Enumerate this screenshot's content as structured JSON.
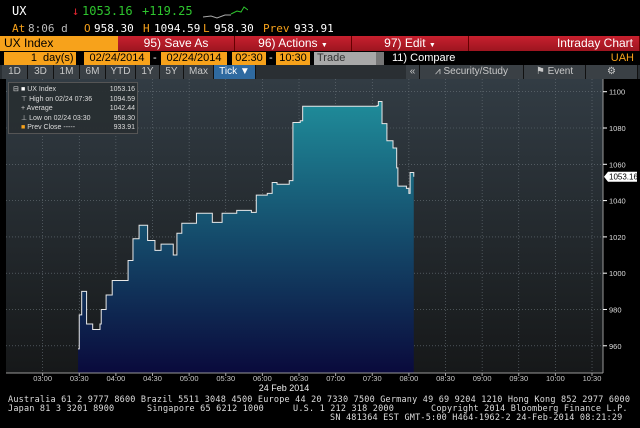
{
  "quote": {
    "ticker": "UX",
    "arrow": "↓",
    "last": "1053.16",
    "change": "+119.25",
    "at_label": "At",
    "time": "8:06 d",
    "open_label": "O",
    "open": "958.30",
    "high_label": "H",
    "high": "1094.59",
    "low_label": "L",
    "low": "958.30",
    "prev_label": "Prev",
    "prev": "933.91"
  },
  "menubar": {
    "security": "UX Index",
    "save_as": "95) Save As",
    "actions": "96) Actions",
    "edit": "97) Edit",
    "title": "Intraday Chart"
  },
  "controls": {
    "period": "1",
    "period_unit": "day(s)",
    "start_date": "02/24/2014",
    "dash": "-",
    "end_date": "02/24/2014",
    "start_time": "02:30",
    "end_time": "10:30",
    "field": "Trade",
    "compare": "11) Compare",
    "currency": "UAH"
  },
  "tabs": [
    "1D",
    "3D",
    "1M",
    "6M",
    "YTD",
    "1Y",
    "5Y",
    "Max",
    "Tick ▼"
  ],
  "toolbar": {
    "collapse": "«",
    "security_study": "Security/Study",
    "event": "Event"
  },
  "legend": [
    {
      "label": "UX Index",
      "value": "1053.16"
    },
    {
      "label": "High on 02/24 07:36",
      "value": "1094.59"
    },
    {
      "label": "Average",
      "value": "1042.44"
    },
    {
      "label": "Low on 02/24 03:30",
      "value": "958.30"
    },
    {
      "label": "Prev Close -----",
      "value": "933.91"
    }
  ],
  "chart_data": {
    "type": "area",
    "xlabel": "24 Feb 2014",
    "x_ticks": [
      "03:00",
      "03:30",
      "04:00",
      "04:30",
      "05:00",
      "05:30",
      "06:00",
      "06:30",
      "07:00",
      "07:30",
      "08:00",
      "08:30",
      "09:00",
      "09:30",
      "10:00",
      "10:30"
    ],
    "y_ticks": [
      960,
      980,
      1000,
      1020,
      1040,
      1060,
      1080,
      1100
    ],
    "xlim": [
      "02:30",
      "10:39"
    ],
    "ylim": [
      945,
      1107
    ],
    "grid": true,
    "last_value_label": "1053.16",
    "colors": {
      "line": "#e8e8e8",
      "fill_top": "#1f8c9a",
      "fill_bottom": "#0a0a3c"
    },
    "x": [
      "03:29",
      "03:30",
      "03:32",
      "03:36",
      "03:41",
      "03:47",
      "03:48",
      "03:52",
      "03:57",
      "04:10",
      "04:14",
      "04:19",
      "04:26",
      "04:32",
      "04:37",
      "04:47",
      "04:50",
      "04:54",
      "05:06",
      "05:19",
      "05:27",
      "05:39",
      "05:51",
      "05:55",
      "06:04",
      "06:08",
      "06:12",
      "06:22",
      "06:25",
      "06:31",
      "06:33",
      "07:34",
      "07:35",
      "07:38",
      "07:42",
      "07:47",
      "07:50",
      "07:51",
      "07:58",
      "08:00",
      "08:01",
      "08:04"
    ],
    "y": [
      958.3,
      977,
      990,
      972,
      969,
      972,
      980,
      988,
      996,
      1007,
      1019,
      1026.4,
      1018,
      1012.6,
      1016,
      1010,
      1022,
      1027.5,
      1033,
      1028,
      1033,
      1034.6,
      1033.5,
      1043,
      1044,
      1050,
      1049,
      1051,
      1083,
      1084,
      1092,
      1092.3,
      1094.59,
      1082.4,
      1073,
      1069,
      1058,
      1048,
      1046.7,
      1044,
      1055.5,
      1053.16
    ]
  },
  "footer": {
    "line1": "Australia 61 2 9777 8600 Brazil 5511 3048 4500 Europe 44 20 7330 7500 Germany 49 69 9204 1210 Hong Kong 852 2977 6000",
    "line2a": "Japan 81 3 3201 8900",
    "line2b": "Singapore 65 6212 1000",
    "line2c": "U.S. 1 212 318 2000",
    "line2d": "Copyright 2014 Bloomberg Finance L.P.",
    "line3": "SN 481364 EST  GMT-5:00 H464-1962-2 24-Feb-2014 08:21:29"
  }
}
